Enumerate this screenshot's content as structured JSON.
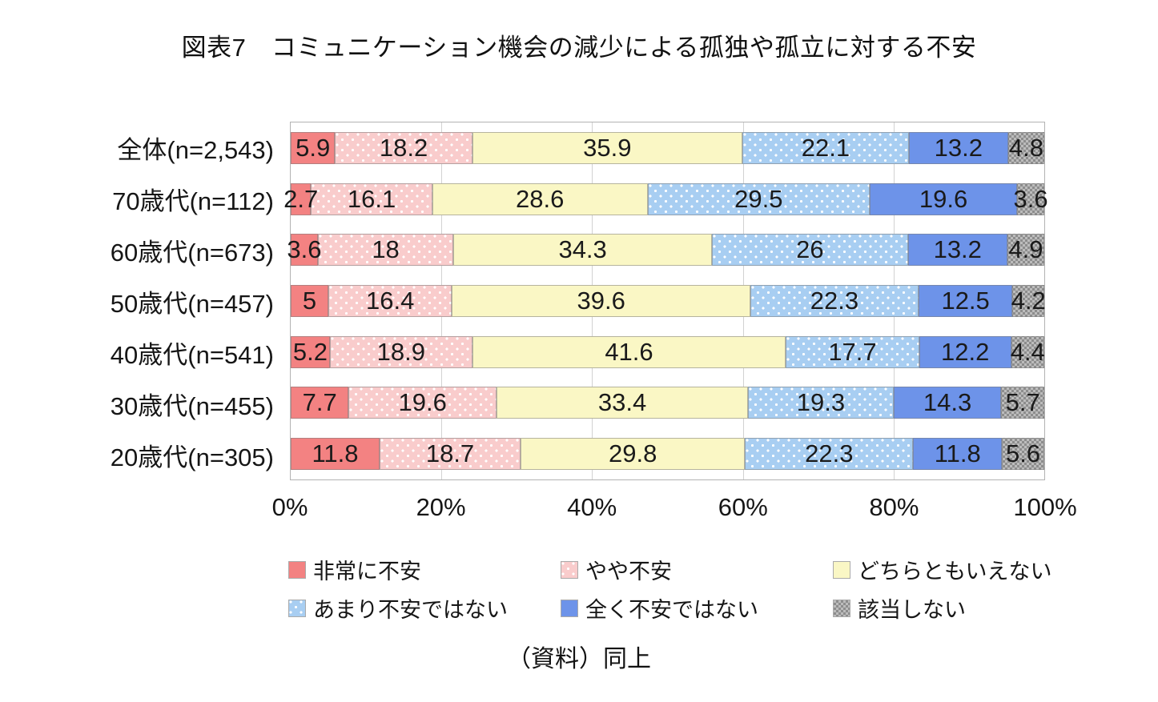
{
  "chart_data": {
    "type": "bar",
    "variant": "horizontal-stacked-100pct",
    "title": "図表7　コミュニケーション機会の減少による孤独や孤立に対する不安",
    "footer": "（資料）同上",
    "categories": [
      "全体(n=2,543)",
      "70歳代(n=112)",
      "60歳代(n=673)",
      "50歳代(n=457)",
      "40歳代(n=541)",
      "30歳代(n=455)",
      "20歳代(n=305)"
    ],
    "series": [
      {
        "name": "非常に不安",
        "color": "#F38282",
        "pattern": "solid",
        "values": [
          5.9,
          2.7,
          3.6,
          5,
          5.2,
          7.7,
          11.8
        ]
      },
      {
        "name": "やや不安",
        "color": "#F9CCCC",
        "pattern": "dots",
        "values": [
          18.2,
          16.1,
          18,
          16.4,
          18.9,
          19.6,
          18.7
        ]
      },
      {
        "name": "どちらともいえない",
        "color": "#FAF7C5",
        "pattern": "solid",
        "values": [
          35.9,
          28.6,
          34.3,
          39.6,
          41.6,
          33.4,
          29.8
        ]
      },
      {
        "name": "あまり不安ではない",
        "color": "#A8CEF2",
        "pattern": "dots",
        "values": [
          22.1,
          29.5,
          26,
          22.3,
          17.7,
          19.3,
          22.3
        ]
      },
      {
        "name": "全く不安ではない",
        "color": "#6D93E9",
        "pattern": "solid",
        "values": [
          13.2,
          19.6,
          13.2,
          12.5,
          12.2,
          14.3,
          11.8
        ]
      },
      {
        "name": "該当しない",
        "color": "#A4A4A4",
        "pattern": "checker",
        "values": [
          4.8,
          3.6,
          4.9,
          4.2,
          4.4,
          5.7,
          5.6
        ]
      }
    ],
    "x_ticks": [
      "0%",
      "20%",
      "40%",
      "60%",
      "80%",
      "100%"
    ],
    "xlim": [
      0,
      100
    ],
    "grid": "vertical-major-20",
    "legend_position": "bottom"
  }
}
